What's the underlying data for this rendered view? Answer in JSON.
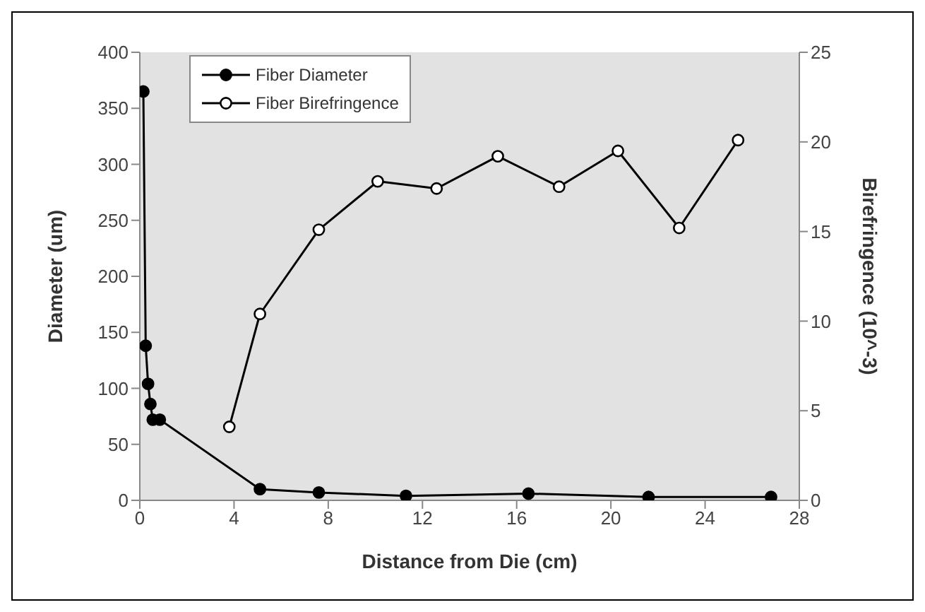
{
  "chart_data": {
    "type": "line",
    "xlabel": "Distance from Die (cm)",
    "ylabel": "Diameter (um)",
    "y2label": "Birefringence (10^-3)",
    "xlim": [
      0,
      28
    ],
    "xticks": [
      0,
      4,
      8,
      12,
      16,
      20,
      24,
      28
    ],
    "ylim": [
      0,
      400
    ],
    "yticks": [
      0,
      50,
      100,
      150,
      200,
      250,
      300,
      350,
      400
    ],
    "y2lim": [
      0,
      25
    ],
    "y2ticks": [
      0,
      5,
      10,
      15,
      20,
      25
    ],
    "grid": false,
    "legend": "top left",
    "marker": "circle",
    "line_style": "solid",
    "series": [
      {
        "name": "Fiber Diameter",
        "color": "#000000",
        "x": [
          0.15,
          0.25,
          0.35,
          0.45,
          0.55,
          0.85,
          5.1,
          7.6,
          11.3,
          16.5,
          21.6,
          26.8
        ],
        "values": [
          365,
          138,
          104,
          86,
          72,
          72,
          10,
          7,
          4,
          6,
          3,
          3
        ]
      },
      {
        "name": "Fiber Birefringence",
        "color": "#000000",
        "axis": "y2",
        "x": [
          3.8,
          5.1,
          7.6,
          10.1,
          12.6,
          15.2,
          17.8,
          20.3,
          22.9,
          25.4
        ],
        "values": [
          4.1,
          10.4,
          15.1,
          17.8,
          17.4,
          19.2,
          17.5,
          19.5,
          15.2,
          20.1
        ]
      }
    ]
  }
}
